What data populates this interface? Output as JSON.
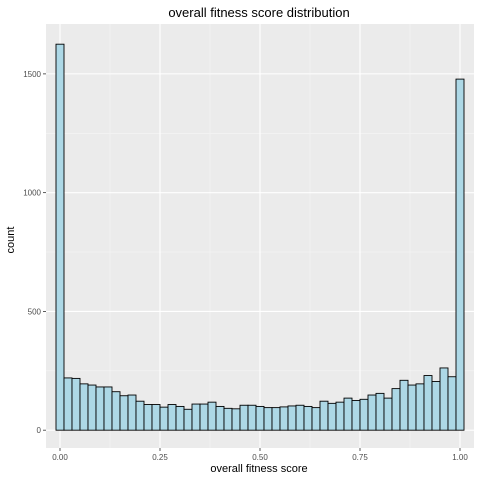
{
  "chart_data": {
    "type": "bar",
    "title": "overall fitness score  distribution",
    "xlabel": "overall fitness score",
    "ylabel": "count",
    "xlim": [
      -0.035,
      1.035
    ],
    "ylim": [
      -75,
      1710
    ],
    "x_ticks": [
      0.0,
      0.25,
      0.5,
      0.75,
      1.0
    ],
    "x_tick_labels": [
      "0.00",
      "0.25",
      "0.50",
      "0.75",
      "1.00"
    ],
    "y_ticks": [
      0,
      500,
      1000,
      1500
    ],
    "y_tick_labels": [
      "0",
      "500",
      "1000",
      "1500"
    ],
    "bin_width": 0.02,
    "bin_centers": [
      0.0,
      0.02,
      0.04,
      0.06,
      0.08,
      0.1,
      0.12,
      0.14,
      0.16,
      0.18,
      0.2,
      0.22,
      0.24,
      0.26,
      0.28,
      0.3,
      0.32,
      0.34,
      0.36,
      0.38,
      0.4,
      0.42,
      0.44,
      0.46,
      0.48,
      0.5,
      0.52,
      0.54,
      0.56,
      0.58,
      0.6,
      0.62,
      0.64,
      0.66,
      0.68,
      0.7,
      0.72,
      0.74,
      0.76,
      0.78,
      0.8,
      0.82,
      0.84,
      0.86,
      0.88,
      0.9,
      0.92,
      0.94,
      0.96,
      0.98,
      1.0
    ],
    "values": [
      1625,
      220,
      218,
      195,
      190,
      182,
      182,
      162,
      145,
      148,
      122,
      108,
      108,
      97,
      108,
      100,
      88,
      110,
      110,
      118,
      100,
      92,
      90,
      105,
      105,
      100,
      95,
      95,
      98,
      102,
      105,
      100,
      95,
      122,
      113,
      118,
      135,
      125,
      130,
      148,
      155,
      135,
      175,
      210,
      190,
      195,
      230,
      205,
      262,
      225,
      1478
    ],
    "fill_color": "#add8e6",
    "edge_color": "#000000",
    "panel_color": "#ebebeb",
    "grid": true
  }
}
